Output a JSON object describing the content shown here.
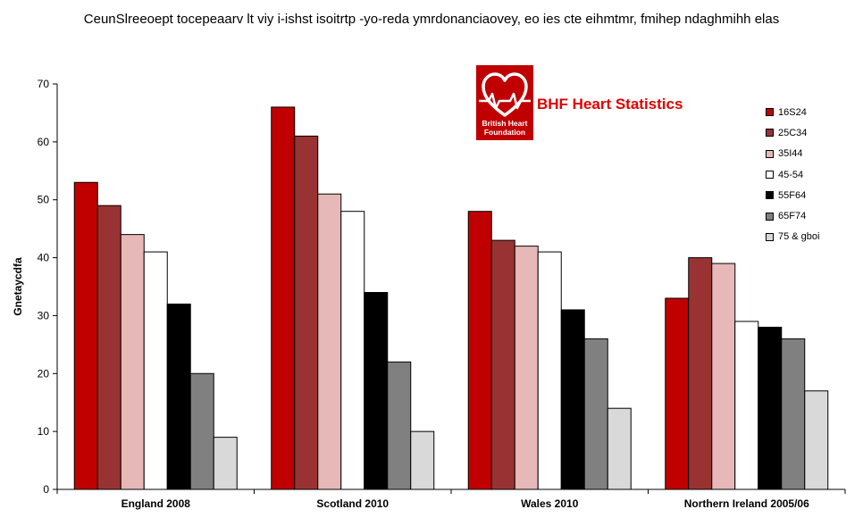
{
  "chart_data": {
    "type": "bar",
    "title": "CeunSlreeoept tocepeaarv lt viy i-ishst isoitrtp -yo-reda ymrdonanciaovey, eo ies cte eihmtmr, fmihep ndaghmihh elas",
    "ylabel": "Gnetaycdfa",
    "xlabel": "",
    "ylim": [
      0,
      70
    ],
    "yticks": [
      0,
      10,
      20,
      30,
      40,
      50,
      60,
      70
    ],
    "grid": false,
    "legend_position": "right",
    "categories": [
      "England 2008",
      "Scotland 2010",
      "Wales 2010",
      "Northern Ireland 2005/06"
    ],
    "series": [
      {
        "name": "16S24",
        "color": "#c00000",
        "values": [
          53,
          66,
          48,
          33
        ]
      },
      {
        "name": "25C34",
        "color": "#993333",
        "values": [
          49,
          61,
          43,
          40
        ]
      },
      {
        "name": "35I44",
        "color": "#e6b8b7",
        "values": [
          44,
          51,
          42,
          39
        ]
      },
      {
        "name": "45-54",
        "color": "#ffffff",
        "values": [
          41,
          48,
          41,
          29
        ]
      },
      {
        "name": "55F64",
        "color": "#000000",
        "values": [
          32,
          34,
          31,
          28
        ]
      },
      {
        "name": "65F74",
        "color": "#808080",
        "values": [
          20,
          22,
          26,
          26
        ]
      },
      {
        "name": "75 & gboi",
        "color": "#d9d9d9",
        "values": [
          9,
          10,
          14,
          17
        ]
      }
    ]
  },
  "brand": {
    "label": "BHF Heart Statistics",
    "logo_text": [
      "British Heart",
      "Foundation"
    ],
    "logo_color": "#c00000",
    "label_color": "#e00000"
  }
}
